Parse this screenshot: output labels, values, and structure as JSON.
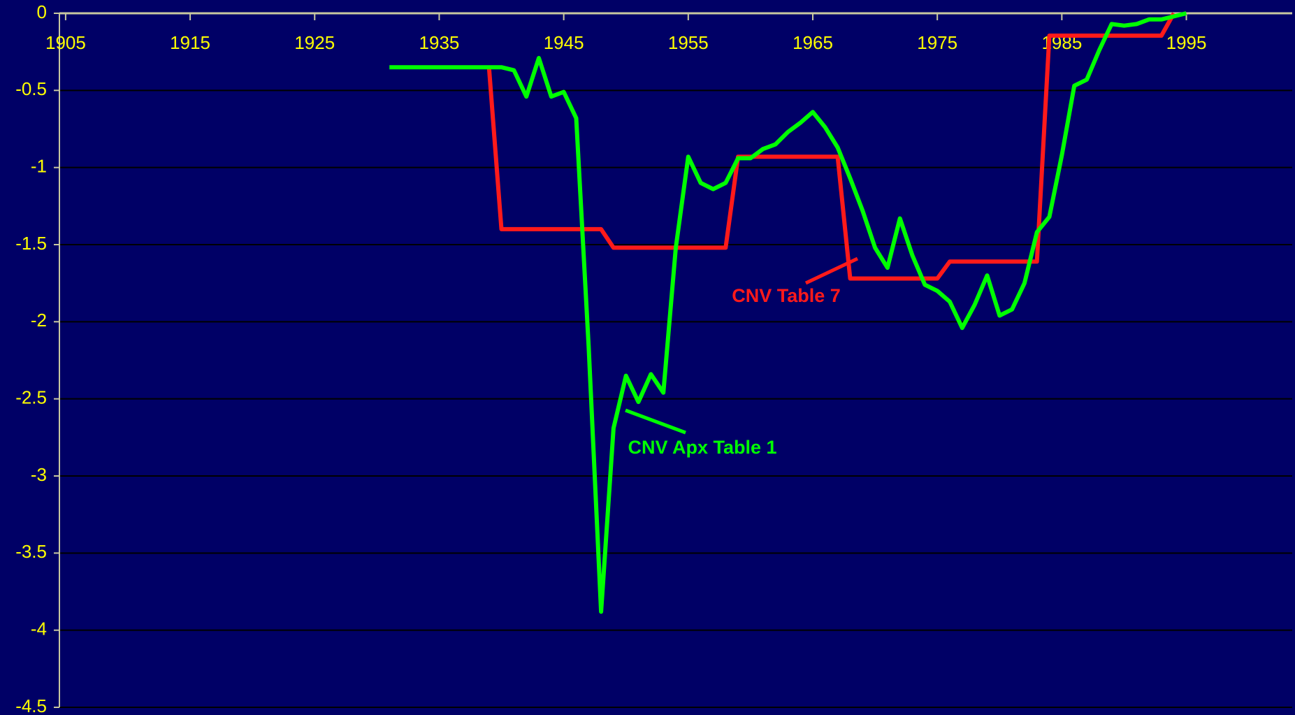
{
  "chart_data": {
    "type": "line",
    "xlim": [
      1904.5,
      2003.5
    ],
    "xticks": [
      1905,
      1915,
      1925,
      1935,
      1945,
      1955,
      1965,
      1975,
      1985,
      1995
    ],
    "ylim": [
      -4.5,
      0
    ],
    "yticks": [
      0,
      -0.5,
      -1,
      -1.5,
      -2,
      -2.5,
      -3,
      -3.5,
      -4,
      -4.5
    ],
    "grid": true,
    "series": [
      {
        "name": "CNV Table 7",
        "color": "#ff1a1a",
        "x": [
          1939,
          1940,
          1948,
          1949,
          1958,
          1959,
          1967,
          1968,
          1975,
          1976,
          1983,
          1984,
          1993,
          1994
        ],
        "values": [
          -0.35,
          -1.4,
          -1.4,
          -1.52,
          -1.52,
          -0.93,
          -0.93,
          -1.72,
          -1.72,
          -1.61,
          -1.61,
          -0.145,
          -0.145,
          0
        ]
      },
      {
        "name": "CNV Apx Table 1",
        "color": "#00ff00",
        "x": [
          1931,
          1932,
          1933,
          1934,
          1935,
          1936,
          1937,
          1938,
          1939,
          1940,
          1941,
          1942,
          1943,
          1944,
          1945,
          1946,
          1947,
          1948,
          1949,
          1950,
          1951,
          1952,
          1953,
          1954,
          1955,
          1956,
          1957,
          1958,
          1959,
          1960,
          1961,
          1962,
          1963,
          1964,
          1965,
          1966,
          1967,
          1968,
          1969,
          1970,
          1971,
          1972,
          1973,
          1974,
          1975,
          1976,
          1977,
          1978,
          1979,
          1980,
          1981,
          1982,
          1983,
          1984,
          1985,
          1986,
          1987,
          1988,
          1989,
          1990,
          1991,
          1992,
          1993,
          1994,
          1995
        ],
        "values": [
          -0.35,
          -0.35,
          -0.35,
          -0.35,
          -0.35,
          -0.35,
          -0.35,
          -0.35,
          -0.35,
          -0.35,
          -0.37,
          -0.54,
          -0.29,
          -0.54,
          -0.51,
          -0.68,
          -2.16,
          -3.88,
          -2.69,
          -2.35,
          -2.52,
          -2.34,
          -2.46,
          -1.52,
          -0.93,
          -1.1,
          -1.14,
          -1.1,
          -0.94,
          -0.94,
          -0.88,
          -0.85,
          -0.77,
          -0.71,
          -0.64,
          -0.74,
          -0.87,
          -1.07,
          -1.28,
          -1.52,
          -1.65,
          -1.33,
          -1.57,
          -1.76,
          -1.8,
          -1.87,
          -2.04,
          -1.89,
          -1.7,
          -1.96,
          -1.92,
          -1.75,
          -1.42,
          -1.32,
          -0.92,
          -0.47,
          -0.43,
          -0.24,
          -0.07,
          -0.08,
          -0.07,
          -0.04,
          -0.04,
          -0.02,
          0
        ]
      }
    ]
  }
}
